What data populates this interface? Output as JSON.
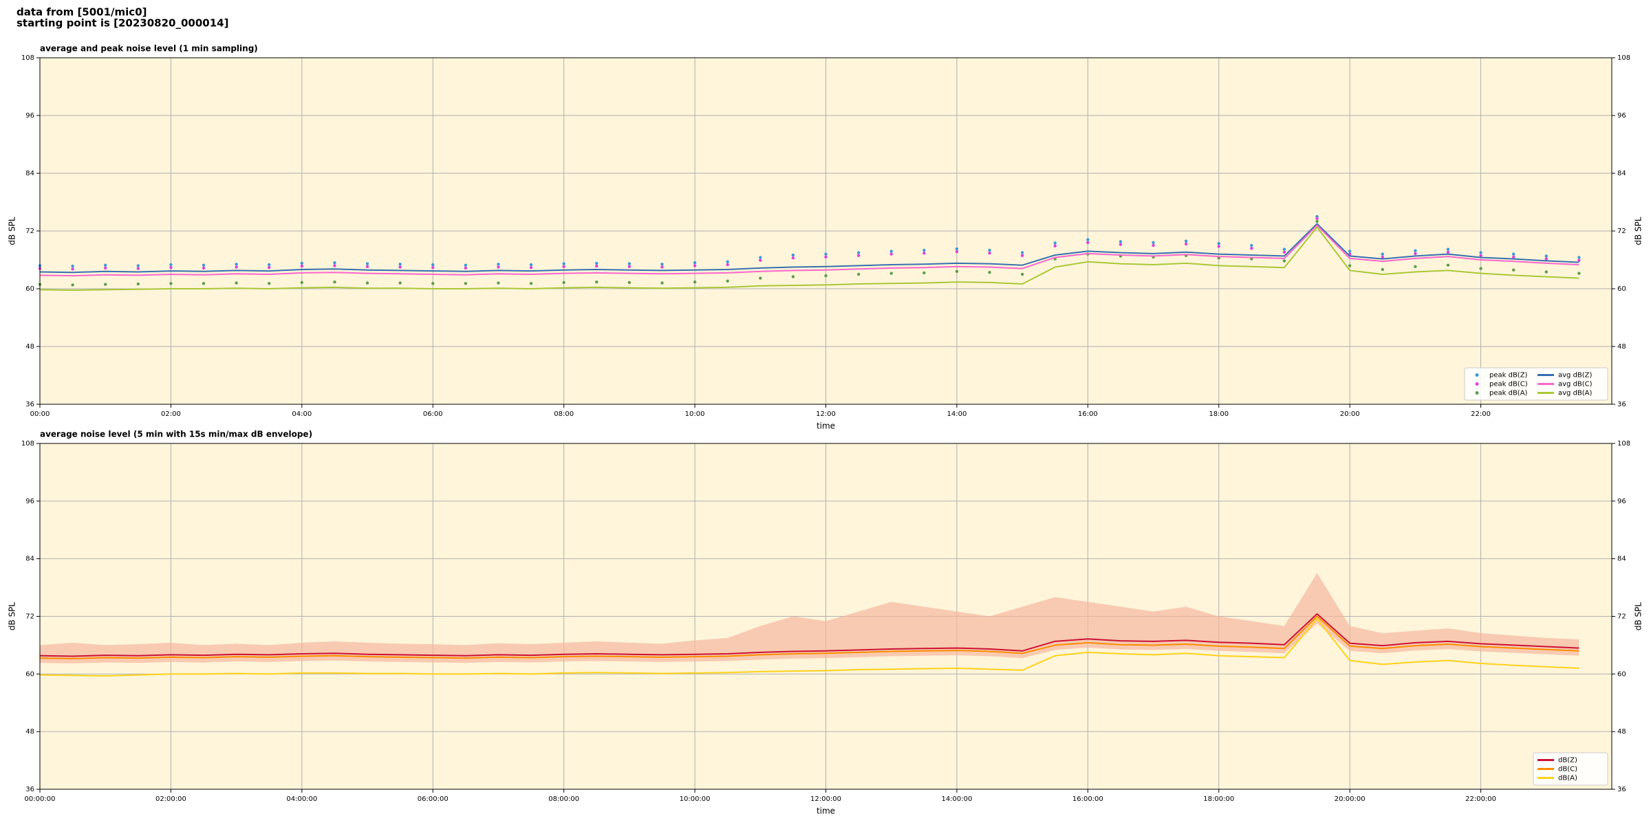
{
  "header": {
    "source": "data from [5001/mic0]",
    "start": "starting point is [20230820_000014]"
  },
  "chart_data": [
    {
      "type": "line",
      "title": "average and peak noise level (1 min sampling)",
      "xlabel": "time",
      "ylabel": "dB SPL",
      "y2label": "dB SPL",
      "xlim": [
        0,
        24
      ],
      "ylim": [
        36,
        108
      ],
      "y2lim": [
        36,
        108
      ],
      "xticks": [
        {
          "value": 0,
          "label": "00:00"
        },
        {
          "value": 2,
          "label": "02:00"
        },
        {
          "value": 4,
          "label": "04:00"
        },
        {
          "value": 6,
          "label": "06:00"
        },
        {
          "value": 8,
          "label": "08:00"
        },
        {
          "value": 10,
          "label": "10:00"
        },
        {
          "value": 12,
          "label": "12:00"
        },
        {
          "value": 14,
          "label": "14:00"
        },
        {
          "value": 16,
          "label": "16:00"
        },
        {
          "value": 18,
          "label": "18:00"
        },
        {
          "value": 20,
          "label": "20:00"
        },
        {
          "value": 22,
          "label": "22:00"
        }
      ],
      "yticks": [
        36,
        48,
        60,
        72,
        84,
        96,
        108
      ],
      "y2ticks": [
        36,
        48,
        60,
        72,
        84,
        96,
        108
      ],
      "grid": true,
      "legend": "lower right",
      "legend_columns": 2,
      "background": "#fff5da",
      "x": [
        0,
        0.5,
        1,
        1.5,
        2,
        2.5,
        3,
        3.5,
        4,
        4.5,
        5,
        5.5,
        6,
        6.5,
        7,
        7.5,
        8,
        8.5,
        9,
        9.5,
        10,
        10.5,
        11,
        11.5,
        12,
        12.5,
        13,
        13.5,
        14,
        14.5,
        15,
        15.5,
        16,
        16.5,
        17,
        17.5,
        18,
        18.5,
        19,
        19.5,
        20,
        20.5,
        21,
        21.5,
        22,
        22.5,
        23,
        23.5
      ],
      "series": [
        {
          "name": "peak dB(Z)",
          "color": "#3a9ad9",
          "kind": "scatter",
          "values": [
            64.8,
            64.7,
            64.9,
            64.8,
            65.0,
            64.9,
            65.1,
            65.0,
            65.3,
            65.4,
            65.2,
            65.1,
            65.0,
            64.9,
            65.1,
            65.0,
            65.2,
            65.3,
            65.2,
            65.1,
            65.4,
            65.6,
            66.5,
            67.0,
            67.2,
            67.5,
            67.8,
            68.0,
            68.3,
            68.0,
            67.5,
            69.5,
            70.2,
            69.8,
            69.6,
            69.9,
            69.4,
            69.0,
            68.2,
            75.0,
            67.8,
            67.2,
            67.9,
            68.2,
            67.5,
            67.2,
            66.8,
            66.5
          ]
        },
        {
          "name": "peak dB(C)",
          "color": "#e040e0",
          "kind": "scatter",
          "values": [
            64.2,
            64.1,
            64.3,
            64.2,
            64.4,
            64.3,
            64.5,
            64.4,
            64.7,
            64.8,
            64.6,
            64.5,
            64.4,
            64.3,
            64.5,
            64.4,
            64.6,
            64.7,
            64.6,
            64.5,
            64.8,
            65.0,
            65.9,
            66.4,
            66.6,
            66.9,
            67.2,
            67.4,
            67.7,
            67.4,
            66.9,
            68.9,
            69.6,
            69.2,
            69.0,
            69.3,
            68.8,
            68.4,
            67.6,
            74.6,
            67.2,
            66.6,
            67.3,
            67.6,
            66.9,
            66.6,
            66.2,
            65.9
          ]
        },
        {
          "name": "peak dB(A)",
          "color": "#5a9e4a",
          "kind": "scatter",
          "values": [
            60.9,
            60.8,
            60.9,
            61.0,
            61.1,
            61.1,
            61.2,
            61.1,
            61.3,
            61.4,
            61.2,
            61.2,
            61.1,
            61.1,
            61.2,
            61.1,
            61.3,
            61.4,
            61.3,
            61.2,
            61.4,
            61.6,
            62.2,
            62.5,
            62.7,
            63.0,
            63.2,
            63.3,
            63.6,
            63.4,
            63.0,
            66.2,
            67.2,
            66.8,
            66.6,
            66.9,
            66.4,
            66.2,
            65.8,
            74.0,
            64.8,
            64.0,
            64.6,
            64.9,
            64.2,
            63.9,
            63.5,
            63.2
          ]
        },
        {
          "name": "avg dB(Z)",
          "color": "#3570b0",
          "kind": "line",
          "values": [
            63.5,
            63.4,
            63.6,
            63.5,
            63.7,
            63.6,
            63.8,
            63.7,
            64.0,
            64.1,
            63.9,
            63.8,
            63.7,
            63.6,
            63.8,
            63.7,
            63.9,
            64.0,
            63.9,
            63.8,
            63.9,
            64.0,
            64.3,
            64.5,
            64.6,
            64.8,
            65.0,
            65.1,
            65.3,
            65.2,
            64.9,
            67.0,
            67.8,
            67.5,
            67.3,
            67.6,
            67.2,
            67.0,
            66.8,
            73.5,
            66.8,
            66.2,
            66.8,
            67.2,
            66.5,
            66.2,
            65.8,
            65.5
          ]
        },
        {
          "name": "avg dB(C)",
          "color": "#ff66cc",
          "kind": "line",
          "values": [
            62.8,
            62.7,
            62.9,
            62.8,
            63.0,
            62.9,
            63.1,
            63.0,
            63.3,
            63.4,
            63.2,
            63.1,
            63.0,
            62.9,
            63.1,
            63.0,
            63.2,
            63.3,
            63.2,
            63.1,
            63.2,
            63.3,
            63.6,
            63.8,
            63.9,
            64.1,
            64.3,
            64.4,
            64.6,
            64.5,
            64.2,
            66.5,
            67.3,
            67.0,
            66.8,
            67.1,
            66.7,
            66.5,
            66.3,
            73.2,
            66.3,
            65.7,
            66.3,
            66.7,
            66.0,
            65.7,
            65.3,
            65.0
          ]
        },
        {
          "name": "avg dB(A)",
          "color": "#a8c838",
          "kind": "line",
          "values": [
            59.8,
            59.7,
            59.8,
            59.9,
            60.0,
            60.0,
            60.1,
            60.0,
            60.2,
            60.3,
            60.1,
            60.1,
            60.0,
            60.0,
            60.1,
            60.0,
            60.2,
            60.3,
            60.2,
            60.1,
            60.2,
            60.3,
            60.6,
            60.7,
            60.8,
            61.0,
            61.1,
            61.2,
            61.4,
            61.3,
            61.0,
            64.5,
            65.6,
            65.2,
            65.0,
            65.3,
            64.8,
            64.6,
            64.4,
            72.8,
            63.8,
            63.0,
            63.5,
            63.8,
            63.2,
            62.8,
            62.5,
            62.2
          ]
        }
      ]
    },
    {
      "type": "line",
      "title": "average noise level (5 min with 15s min/max dB envelope)",
      "xlabel": "time",
      "ylabel": "dB SPL",
      "y2label": "dB SPL",
      "xlim": [
        0,
        24
      ],
      "ylim": [
        36,
        108
      ],
      "y2lim": [
        36,
        108
      ],
      "xticks": [
        {
          "value": 0,
          "label": "00:00:00"
        },
        {
          "value": 2,
          "label": "02:00:00"
        },
        {
          "value": 4,
          "label": "04:00:00"
        },
        {
          "value": 6,
          "label": "06:00:00"
        },
        {
          "value": 8,
          "label": "08:00:00"
        },
        {
          "value": 10,
          "label": "10:00:00"
        },
        {
          "value": 12,
          "label": "12:00:00"
        },
        {
          "value": 14,
          "label": "14:00:00"
        },
        {
          "value": 16,
          "label": "16:00:00"
        },
        {
          "value": 18,
          "label": "18:00:00"
        },
        {
          "value": 20,
          "label": "20:00:00"
        },
        {
          "value": 22,
          "label": "22:00:00"
        }
      ],
      "yticks": [
        36,
        48,
        60,
        72,
        84,
        96,
        108
      ],
      "y2ticks": [
        36,
        48,
        60,
        72,
        84,
        96,
        108
      ],
      "grid": true,
      "legend": "lower right",
      "legend_columns": 1,
      "background": "#fff5da",
      "x": [
        0,
        0.5,
        1,
        1.5,
        2,
        2.5,
        3,
        3.5,
        4,
        4.5,
        5,
        5.5,
        6,
        6.5,
        7,
        7.5,
        8,
        8.5,
        9,
        9.5,
        10,
        10.5,
        11,
        11.5,
        12,
        12.5,
        13,
        13.5,
        14,
        14.5,
        15,
        15.5,
        16,
        16.5,
        17,
        17.5,
        18,
        18.5,
        19,
        19.5,
        20,
        20.5,
        21,
        21.5,
        22,
        22.5,
        23,
        23.5
      ],
      "envelope": {
        "color": "#f5b8a0",
        "low": [
          62.3,
          62.2,
          62.4,
          62.3,
          62.5,
          62.4,
          62.6,
          62.5,
          62.7,
          62.8,
          62.6,
          62.5,
          62.4,
          62.3,
          62.5,
          62.4,
          62.6,
          62.7,
          62.6,
          62.5,
          62.6,
          62.7,
          63.0,
          63.2,
          63.3,
          63.5,
          63.7,
          63.8,
          63.9,
          63.7,
          63.3,
          65.0,
          65.5,
          65.1,
          65.0,
          65.2,
          64.8,
          64.6,
          64.3,
          70.5,
          64.8,
          64.3,
          64.9,
          65.2,
          64.7,
          64.4,
          64.1,
          63.8
        ],
        "high": [
          66,
          66.5,
          66,
          66.2,
          66.5,
          66,
          66.3,
          66,
          66.5,
          66.8,
          66.5,
          66.3,
          66.2,
          66,
          66.4,
          66.2,
          66.5,
          66.8,
          66.5,
          66.3,
          67,
          67.5,
          70,
          72,
          71,
          73,
          75,
          74,
          73,
          72,
          74,
          76,
          75,
          74,
          73,
          74,
          72,
          71,
          70,
          81,
          70,
          68.5,
          69,
          69.5,
          68.5,
          68,
          67.5,
          67.2
        ]
      },
      "series": [
        {
          "name": "dB(Z)",
          "color": "#cc1133",
          "kind": "line",
          "values": [
            63.8,
            63.7,
            63.9,
            63.8,
            64.0,
            63.9,
            64.1,
            64.0,
            64.2,
            64.3,
            64.1,
            64.0,
            63.9,
            63.8,
            64.0,
            63.9,
            64.1,
            64.2,
            64.1,
            64.0,
            64.1,
            64.2,
            64.5,
            64.7,
            64.8,
            65.0,
            65.2,
            65.3,
            65.4,
            65.2,
            64.8,
            66.8,
            67.3,
            66.9,
            66.8,
            67.0,
            66.6,
            66.4,
            66.1,
            72.5,
            66.4,
            65.9,
            66.5,
            66.8,
            66.3,
            66.0,
            65.7,
            65.4
          ]
        },
        {
          "name": "dB(C)",
          "color": "#ff8c00",
          "kind": "line",
          "values": [
            63.3,
            63.2,
            63.4,
            63.3,
            63.5,
            63.4,
            63.6,
            63.5,
            63.7,
            63.8,
            63.6,
            63.5,
            63.4,
            63.3,
            63.5,
            63.4,
            63.6,
            63.7,
            63.6,
            63.5,
            63.6,
            63.7,
            64.0,
            64.2,
            64.3,
            64.5,
            64.7,
            64.8,
            64.9,
            64.7,
            64.3,
            66.0,
            66.5,
            66.1,
            66.0,
            66.2,
            65.8,
            65.6,
            65.3,
            72.0,
            65.8,
            65.3,
            65.9,
            66.2,
            65.7,
            65.4,
            65.1,
            64.8
          ]
        },
        {
          "name": "dB(A)",
          "color": "#ffd21a",
          "kind": "line",
          "values": [
            59.8,
            59.7,
            59.6,
            59.8,
            60.0,
            60.0,
            60.1,
            60.0,
            60.2,
            60.2,
            60.1,
            60.1,
            60.0,
            60.0,
            60.1,
            60.0,
            60.2,
            60.3,
            60.2,
            60.1,
            60.2,
            60.3,
            60.5,
            60.6,
            60.7,
            60.9,
            61.0,
            61.1,
            61.2,
            61.0,
            60.8,
            63.8,
            64.5,
            64.2,
            64.0,
            64.3,
            63.8,
            63.6,
            63.4,
            71.5,
            62.8,
            62.0,
            62.5,
            62.8,
            62.2,
            61.8,
            61.5,
            61.2
          ]
        }
      ]
    }
  ]
}
